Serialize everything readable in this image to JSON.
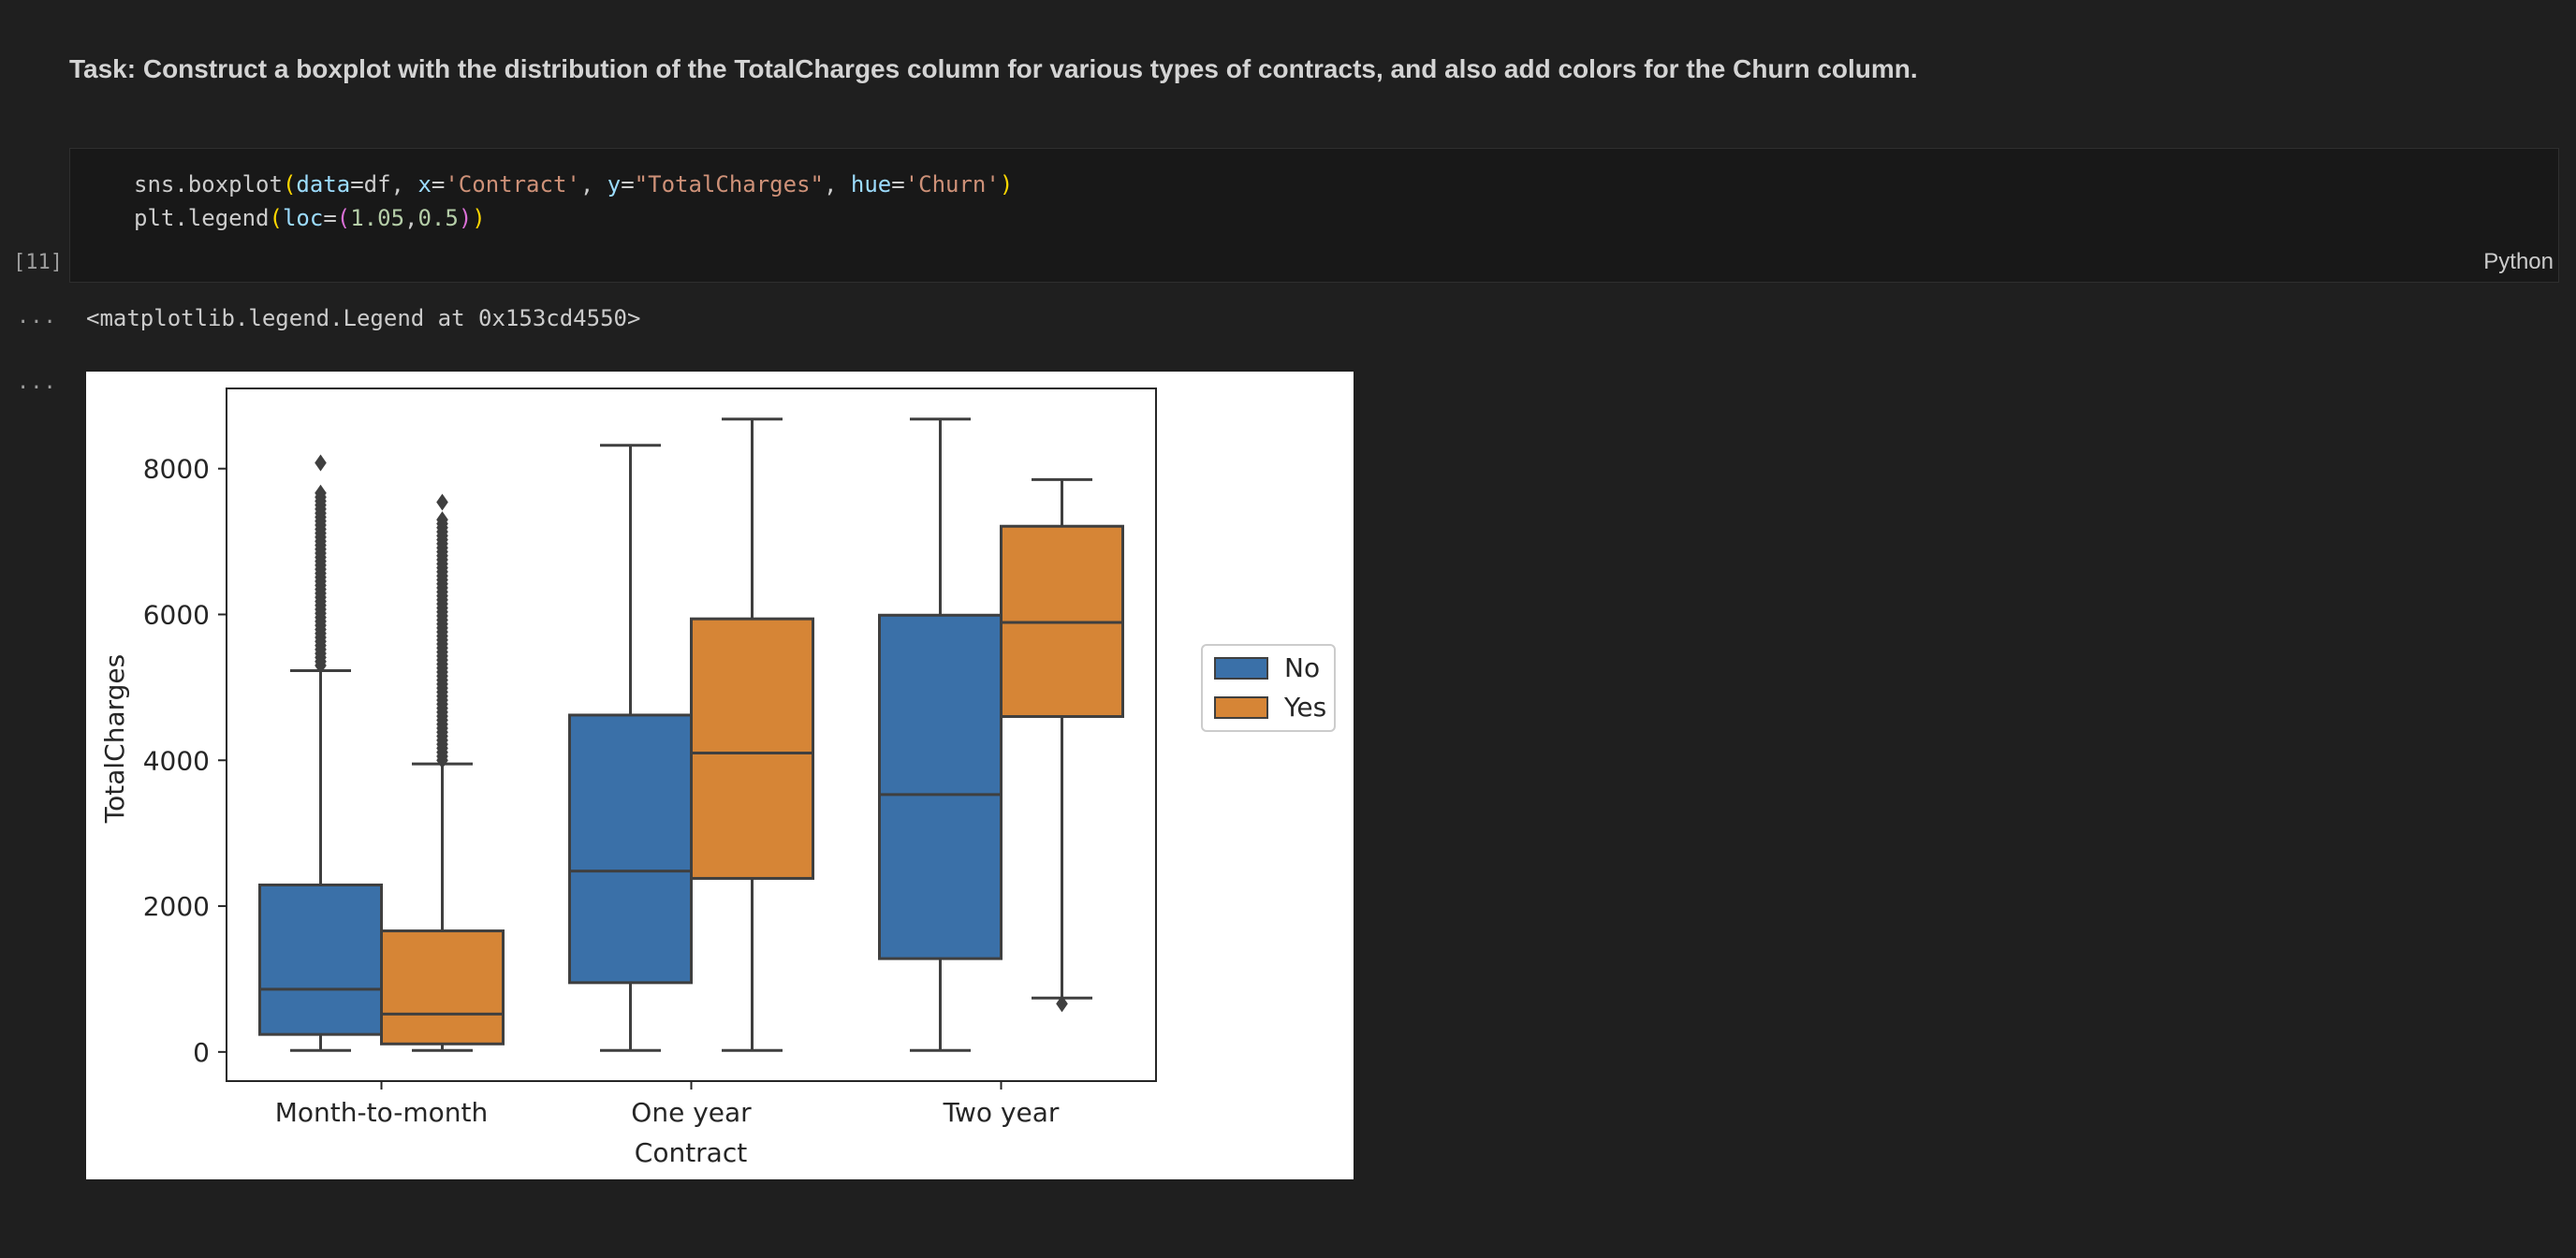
{
  "markdown": {
    "task_text": "Task: Construct a boxplot with the distribution of the TotalCharges column for various types of contracts, and also add colors for the Churn column."
  },
  "code_cell": {
    "execution_count": "[11]",
    "language": "Python",
    "lines": [
      "sns.boxplot(data=df, x='Contract', y=\"TotalCharges\", hue='Churn')",
      "plt.legend(loc=(1.05,0.5))"
    ]
  },
  "outputs": {
    "ellipsis": "...",
    "text_output": "<matplotlib.legend.Legend at 0x153cd4550>"
  },
  "chart_data": {
    "type": "boxplot",
    "xlabel": "Contract",
    "ylabel": "TotalCharges",
    "categories": [
      "Month-to-month",
      "One year",
      "Two year"
    ],
    "ylim": [
      -400,
      9100
    ],
    "yticks": [
      0,
      2000,
      4000,
      6000,
      8000
    ],
    "ytick_labels": [
      "0",
      "2000",
      "4000",
      "6000",
      "8000"
    ],
    "grid": false,
    "legend": {
      "placement": "outside-right",
      "entries": [
        "No",
        "Yes"
      ]
    },
    "series": [
      {
        "name": "No",
        "color": "#3a70a8",
        "boxes": [
          {
            "whislo": 20,
            "q1": 240,
            "med": 860,
            "q3": 2290,
            "whishi": 5230,
            "fliers_range": [
              5300,
              7700
            ],
            "max_flier": 8080
          },
          {
            "whislo": 20,
            "q1": 950,
            "med": 2480,
            "q3": 4620,
            "whishi": 8320
          },
          {
            "whislo": 20,
            "q1": 1280,
            "med": 3530,
            "q3": 5990,
            "whishi": 8680
          }
        ]
      },
      {
        "name": "Yes",
        "color": "#d68536",
        "boxes": [
          {
            "whislo": 20,
            "q1": 110,
            "med": 520,
            "q3": 1660,
            "whishi": 3950,
            "fliers_range": [
              4000,
              7350
            ],
            "max_flier": 7540
          },
          {
            "whislo": 20,
            "q1": 2380,
            "med": 4100,
            "q3": 5940,
            "whishi": 8680
          },
          {
            "whislo": 740,
            "q1": 4600,
            "med": 5890,
            "q3": 7210,
            "whishi": 7850,
            "low_flier": 660
          }
        ]
      }
    ]
  }
}
